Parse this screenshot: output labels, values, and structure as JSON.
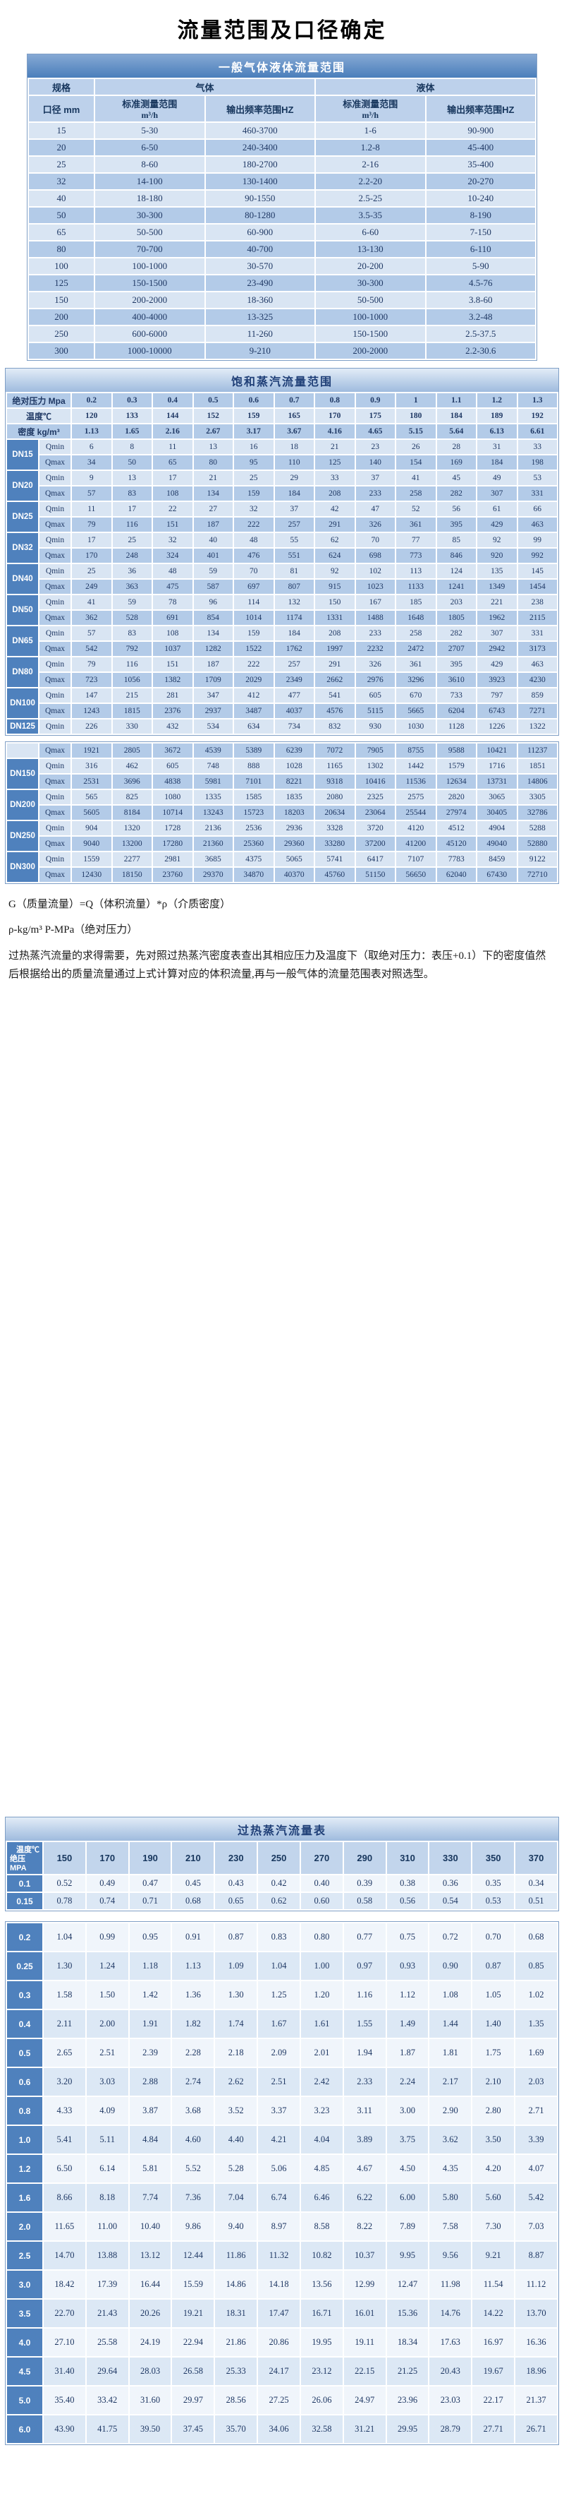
{
  "page_title": "流量范围及口径确定",
  "colors": {
    "accent_blue": "#4f81bd",
    "row_light": "#d9e5f3",
    "row_dark": "#b3cbe8",
    "title_text_on_dark": "#ffffff",
    "body_text": "#1f3864"
  },
  "general_table": {
    "title": "一般气体液体流量范围",
    "header": {
      "spec": "规格",
      "gas": "气体",
      "liquid": "液体",
      "diameter": "口径 mm",
      "range_label": "标准测量范围",
      "range_unit": "m³/h",
      "freq_label": "输出频率范围HZ"
    },
    "rows": [
      {
        "dn": "15",
        "gas_range": "5-30",
        "gas_freq": "460-3700",
        "liq_range": "1-6",
        "liq_freq": "90-900"
      },
      {
        "dn": "20",
        "gas_range": "6-50",
        "gas_freq": "240-3400",
        "liq_range": "1.2-8",
        "liq_freq": "45-400"
      },
      {
        "dn": "25",
        "gas_range": "8-60",
        "gas_freq": "180-2700",
        "liq_range": "2-16",
        "liq_freq": "35-400"
      },
      {
        "dn": "32",
        "gas_range": "14-100",
        "gas_freq": "130-1400",
        "liq_range": "2.2-20",
        "liq_freq": "20-270"
      },
      {
        "dn": "40",
        "gas_range": "18-180",
        "gas_freq": "90-1550",
        "liq_range": "2.5-25",
        "liq_freq": "10-240"
      },
      {
        "dn": "50",
        "gas_range": "30-300",
        "gas_freq": "80-1280",
        "liq_range": "3.5-35",
        "liq_freq": "8-190"
      },
      {
        "dn": "65",
        "gas_range": "50-500",
        "gas_freq": "60-900",
        "liq_range": "6-60",
        "liq_freq": "7-150"
      },
      {
        "dn": "80",
        "gas_range": "70-700",
        "gas_freq": "40-700",
        "liq_range": "13-130",
        "liq_freq": "6-110"
      },
      {
        "dn": "100",
        "gas_range": "100-1000",
        "gas_freq": "30-570",
        "liq_range": "20-200",
        "liq_freq": "5-90"
      },
      {
        "dn": "125",
        "gas_range": "150-1500",
        "gas_freq": "23-490",
        "liq_range": "30-300",
        "liq_freq": "4.5-76"
      },
      {
        "dn": "150",
        "gas_range": "200-2000",
        "gas_freq": "18-360",
        "liq_range": "50-500",
        "liq_freq": "3.8-60"
      },
      {
        "dn": "200",
        "gas_range": "400-4000",
        "gas_freq": "13-325",
        "liq_range": "100-1000",
        "liq_freq": "3.2-48"
      },
      {
        "dn": "250",
        "gas_range": "600-6000",
        "gas_freq": "11-260",
        "liq_range": "150-1500",
        "liq_freq": "2.5-37.5"
      },
      {
        "dn": "300",
        "gas_range": "1000-10000",
        "gas_freq": "9-210",
        "liq_range": "200-2000",
        "liq_freq": "2.2-30.6"
      }
    ]
  },
  "saturated_table": {
    "title": "饱和蒸汽流量范围",
    "pressure_label": "绝对压力 Mpa",
    "pressures": [
      "0.2",
      "0.3",
      "0.4",
      "0.5",
      "0.6",
      "0.7",
      "0.8",
      "0.9",
      "1",
      "1.1",
      "1.2",
      "1.3"
    ],
    "temp_label": "温度℃",
    "temps": [
      "120",
      "133",
      "144",
      "152",
      "159",
      "165",
      "170",
      "175",
      "180",
      "184",
      "189",
      "192"
    ],
    "density_label": "密度 kg/m³",
    "densities": [
      "1.13",
      "1.65",
      "2.16",
      "2.67",
      "3.17",
      "3.67",
      "4.16",
      "4.65",
      "5.15",
      "5.64",
      "6.13",
      "6.61"
    ],
    "qmin_label": "Qmin",
    "qmax_label": "Qmax",
    "block1": [
      {
        "dn": "DN15",
        "qmin": [
          "6",
          "8",
          "11",
          "13",
          "16",
          "18",
          "21",
          "23",
          "26",
          "28",
          "31",
          "33"
        ],
        "qmax": [
          "34",
          "50",
          "65",
          "80",
          "95",
          "110",
          "125",
          "140",
          "154",
          "169",
          "184",
          "198"
        ]
      },
      {
        "dn": "DN20",
        "qmin": [
          "9",
          "13",
          "17",
          "21",
          "25",
          "29",
          "33",
          "37",
          "41",
          "45",
          "49",
          "53"
        ],
        "qmax": [
          "57",
          "83",
          "108",
          "134",
          "159",
          "184",
          "208",
          "233",
          "258",
          "282",
          "307",
          "331"
        ]
      },
      {
        "dn": "DN25",
        "qmin": [
          "11",
          "17",
          "22",
          "27",
          "32",
          "37",
          "42",
          "47",
          "52",
          "56",
          "61",
          "66"
        ],
        "qmax": [
          "79",
          "116",
          "151",
          "187",
          "222",
          "257",
          "291",
          "326",
          "361",
          "395",
          "429",
          "463"
        ]
      },
      {
        "dn": "DN32",
        "qmin": [
          "17",
          "25",
          "32",
          "40",
          "48",
          "55",
          "62",
          "70",
          "77",
          "85",
          "92",
          "99"
        ],
        "qmax": [
          "170",
          "248",
          "324",
          "401",
          "476",
          "551",
          "624",
          "698",
          "773",
          "846",
          "920",
          "992"
        ]
      },
      {
        "dn": "DN40",
        "qmin": [
          "25",
          "36",
          "48",
          "59",
          "70",
          "81",
          "92",
          "102",
          "113",
          "124",
          "135",
          "145"
        ],
        "qmax": [
          "249",
          "363",
          "475",
          "587",
          "697",
          "807",
          "915",
          "1023",
          "1133",
          "1241",
          "1349",
          "1454"
        ]
      },
      {
        "dn": "DN50",
        "qmin": [
          "41",
          "59",
          "78",
          "96",
          "114",
          "132",
          "150",
          "167",
          "185",
          "203",
          "221",
          "238"
        ],
        "qmax": [
          "362",
          "528",
          "691",
          "854",
          "1014",
          "1174",
          "1331",
          "1488",
          "1648",
          "1805",
          "1962",
          "2115"
        ]
      },
      {
        "dn": "DN65",
        "qmin": [
          "57",
          "83",
          "108",
          "134",
          "159",
          "184",
          "208",
          "233",
          "258",
          "282",
          "307",
          "331"
        ],
        "qmax": [
          "542",
          "792",
          "1037",
          "1282",
          "1522",
          "1762",
          "1997",
          "2232",
          "2472",
          "2707",
          "2942",
          "3173"
        ]
      },
      {
        "dn": "DN80",
        "qmin": [
          "79",
          "116",
          "151",
          "187",
          "222",
          "257",
          "291",
          "326",
          "361",
          "395",
          "429",
          "463"
        ],
        "qmax": [
          "723",
          "1056",
          "1382",
          "1709",
          "2029",
          "2349",
          "2662",
          "2976",
          "3296",
          "3610",
          "3923",
          "4230"
        ]
      },
      {
        "dn": "DN100",
        "qmin": [
          "147",
          "215",
          "281",
          "347",
          "412",
          "477",
          "541",
          "605",
          "670",
          "733",
          "797",
          "859"
        ],
        "qmax": [
          "1243",
          "1815",
          "2376",
          "2937",
          "3487",
          "4037",
          "4576",
          "5115",
          "5665",
          "6204",
          "6743",
          "7271"
        ]
      },
      {
        "dn": "DN125",
        "qmin": [
          "226",
          "330",
          "432",
          "534",
          "634",
          "734",
          "832",
          "930",
          "1030",
          "1128",
          "1226",
          "1322"
        ]
      }
    ],
    "block2_lead": {
      "label": "Qmax",
      "values": [
        "1921",
        "2805",
        "3672",
        "4539",
        "5389",
        "6239",
        "7072",
        "7905",
        "8755",
        "9588",
        "10421",
        "11237"
      ]
    },
    "block2": [
      {
        "dn": "DN150",
        "qmin": [
          "316",
          "462",
          "605",
          "748",
          "888",
          "1028",
          "1165",
          "1302",
          "1442",
          "1579",
          "1716",
          "1851"
        ],
        "qmax": [
          "2531",
          "3696",
          "4838",
          "5981",
          "7101",
          "8221",
          "9318",
          "10416",
          "11536",
          "12634",
          "13731",
          "14806"
        ]
      },
      {
        "dn": "DN200",
        "qmin": [
          "565",
          "825",
          "1080",
          "1335",
          "1585",
          "1835",
          "2080",
          "2325",
          "2575",
          "2820",
          "3065",
          "3305"
        ],
        "qmax": [
          "5605",
          "8184",
          "10714",
          "13243",
          "15723",
          "18203",
          "20634",
          "23064",
          "25544",
          "27974",
          "30405",
          "32786"
        ]
      },
      {
        "dn": "DN250",
        "qmin": [
          "904",
          "1320",
          "1728",
          "2136",
          "2536",
          "2936",
          "3328",
          "3720",
          "4120",
          "4512",
          "4904",
          "5288"
        ],
        "qmax": [
          "9040",
          "13200",
          "17280",
          "21360",
          "25360",
          "29360",
          "33280",
          "37200",
          "41200",
          "45120",
          "49040",
          "52880"
        ]
      },
      {
        "dn": "DN300",
        "qmin": [
          "1559",
          "2277",
          "2981",
          "3685",
          "4375",
          "5065",
          "5741",
          "6417",
          "7107",
          "7783",
          "8459",
          "9122"
        ],
        "q max_note": "",
        "qmax": [
          "12430",
          "18150",
          "23760",
          "29370",
          "34870",
          "40370",
          "45760",
          "51150",
          "56650",
          "62040",
          "67430",
          "72710"
        ]
      }
    ]
  },
  "notes": {
    "formula": "G（质量流量）=Q（体积流量）*ρ（介质密度）",
    "units": "ρ-kg/m³  P-MPa（绝对压力）",
    "paragraph": "过热蒸汽流量的求得需要，先对照过热蒸汽密度表查出其相应压力及温度下（取绝对压力：表压+0.1）下的密度值然后根据给出的质量流量通过上式计算对应的体积流量,再与一般气体的流量范围表对照选型。"
  },
  "superheated_table": {
    "title": "过热蒸汽流量表",
    "corner_top": "温度℃",
    "corner_bottom": "绝压 MPA",
    "temps": [
      "150",
      "170",
      "190",
      "210",
      "230",
      "250",
      "270",
      "290",
      "310",
      "330",
      "350",
      "370"
    ],
    "block1": [
      {
        "p": "0.1",
        "values": [
          "0.52",
          "0.49",
          "0.47",
          "0.45",
          "0.43",
          "0.42",
          "0.40",
          "0.39",
          "0.38",
          "0.36",
          "0.35",
          "0.34"
        ]
      },
      {
        "p": "0.15",
        "values": [
          "0.78",
          "0.74",
          "0.71",
          "0.68",
          "0.65",
          "0.62",
          "0.60",
          "0.58",
          "0.56",
          "0.54",
          "0.53",
          "0.51"
        ]
      }
    ],
    "block2": [
      {
        "p": "0.2",
        "values": [
          "1.04",
          "0.99",
          "0.95",
          "0.91",
          "0.87",
          "0.83",
          "0.80",
          "0.77",
          "0.75",
          "0.72",
          "0.70",
          "0.68"
        ]
      },
      {
        "p": "0.25",
        "values": [
          "1.30",
          "1.24",
          "1.18",
          "1.13",
          "1.09",
          "1.04",
          "1.00",
          "0.97",
          "0.93",
          "0.90",
          "0.87",
          "0.85"
        ]
      },
      {
        "p": "0.3",
        "values": [
          "1.58",
          "1.50",
          "1.42",
          "1.36",
          "1.30",
          "1.25",
          "1.20",
          "1.16",
          "1.12",
          "1.08",
          "1.05",
          "1.02"
        ]
      },
      {
        "p": "0.4",
        "values": [
          "2.11",
          "2.00",
          "1.91",
          "1.82",
          "1.74",
          "1.67",
          "1.61",
          "1.55",
          "1.49",
          "1.44",
          "1.40",
          "1.35"
        ]
      },
      {
        "p": "0.5",
        "values": [
          "2.65",
          "2.51",
          "2.39",
          "2.28",
          "2.18",
          "2.09",
          "2.01",
          "1.94",
          "1.87",
          "1.81",
          "1.75",
          "1.69"
        ]
      },
      {
        "p": "0.6",
        "values": [
          "3.20",
          "3.03",
          "2.88",
          "2.74",
          "2.62",
          "2.51",
          "2.42",
          "2.33",
          "2.24",
          "2.17",
          "2.10",
          "2.03"
        ]
      },
      {
        "p": "0.8",
        "values": [
          "4.33",
          "4.09",
          "3.87",
          "3.68",
          "3.52",
          "3.37",
          "3.23",
          "3.11",
          "3.00",
          "2.90",
          "2.80",
          "2.71"
        ]
      },
      {
        "p": "1.0",
        "values": [
          "5.41",
          "5.11",
          "4.84",
          "4.60",
          "4.40",
          "4.21",
          "4.04",
          "3.89",
          "3.75",
          "3.62",
          "3.50",
          "3.39"
        ]
      },
      {
        "p": "1.2",
        "values": [
          "6.50",
          "6.14",
          "5.81",
          "5.52",
          "5.28",
          "5.06",
          "4.85",
          "4.67",
          "4.50",
          "4.35",
          "4.20",
          "4.07"
        ]
      },
      {
        "p": "1.6",
        "values": [
          "8.66",
          "8.18",
          "7.74",
          "7.36",
          "7.04",
          "6.74",
          "6.46",
          "6.22",
          "6.00",
          "5.80",
          "5.60",
          "5.42"
        ]
      },
      {
        "p": "2.0",
        "values": [
          "11.65",
          "11.00",
          "10.40",
          "9.86",
          "9.40",
          "8.97",
          "8.58",
          "8.22",
          "7.89",
          "7.58",
          "7.30",
          "7.03"
        ]
      },
      {
        "p": "2.5",
        "values": [
          "14.70",
          "13.88",
          "13.12",
          "12.44",
          "11.86",
          "11.32",
          "10.82",
          "10.37",
          "9.95",
          "9.56",
          "9.21",
          "8.87"
        ]
      },
      {
        "p": "3.0",
        "values": [
          "18.42",
          "17.39",
          "16.44",
          "15.59",
          "14.86",
          "14.18",
          "13.56",
          "12.99",
          "12.47",
          "11.98",
          "11.54",
          "11.12"
        ]
      },
      {
        "p": "3.5",
        "values": [
          "22.70",
          "21.43",
          "20.26",
          "19.21",
          "18.31",
          "17.47",
          "16.71",
          "16.01",
          "15.36",
          "14.76",
          "14.22",
          "13.70"
        ]
      },
      {
        "p": "4.0",
        "values": [
          "27.10",
          "25.58",
          "24.19",
          "22.94",
          "21.86",
          "20.86",
          "19.95",
          "19.11",
          "18.34",
          "17.63",
          "16.97",
          "16.36"
        ]
      },
      {
        "p": "4.5",
        "values": [
          "31.40",
          "29.64",
          "28.03",
          "26.58",
          "25.33",
          "24.17",
          "23.12",
          "22.15",
          "21.25",
          "20.43",
          "19.67",
          "18.96"
        ]
      },
      {
        "p": "5.0",
        "values": [
          "35.40",
          "33.42",
          "31.60",
          "29.97",
          "28.56",
          "27.25",
          "26.06",
          "24.97",
          "23.96",
          "23.03",
          "22.17",
          "21.37"
        ]
      },
      {
        "p": "6.0",
        "values": [
          "43.90",
          "41.75",
          "39.50",
          "37.45",
          "35.70",
          "34.06",
          "32.58",
          "31.21",
          "29.95",
          "28.79",
          "27.71",
          "26.71"
        ]
      }
    ]
  }
}
